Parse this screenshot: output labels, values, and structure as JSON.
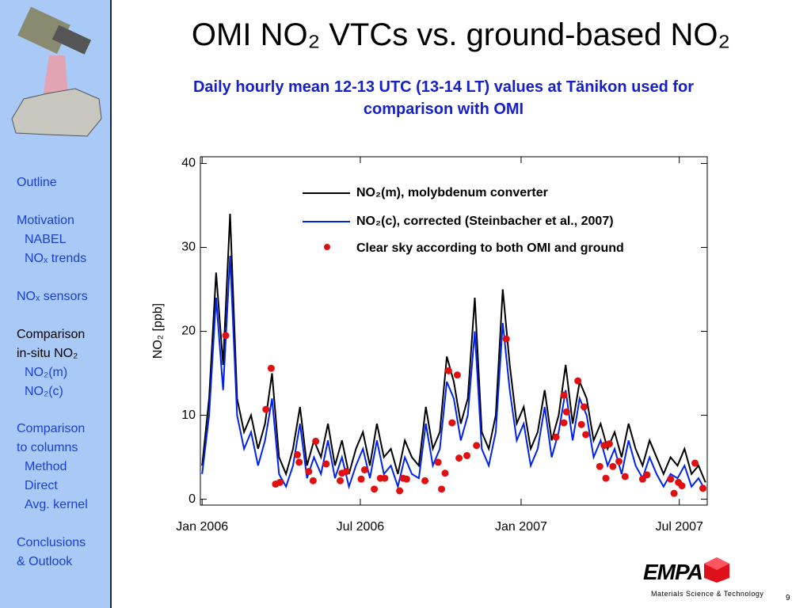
{
  "slide": {
    "title": "OMI NO₂ VTCs vs. ground-based NO₂",
    "subtitle": "Daily hourly mean 12-13 UTC (13-14 LT) values at Tänikon used for comparison with OMI",
    "sidebar": [
      "Outline",
      "Motivation",
      "NABEL",
      "NOₓ trends",
      "NOₓ sensors",
      "Comparison",
      "in-situ NO₂",
      "NO₂(m)",
      "NO₂(c)",
      "Comparison",
      "to columns",
      "Method",
      "Direct",
      "Avg. kernel",
      "Conclusions",
      "& Outlook"
    ],
    "logo": "EMPA",
    "footer": "Materials Science & Technology",
    "page": "9"
  },
  "chart_data": {
    "type": "line",
    "y_label": "NO₂ [ppb]",
    "x": [
      0,
      8,
      16,
      24,
      32,
      40,
      48,
      56,
      64,
      72,
      80,
      88,
      96,
      104,
      112,
      120,
      128,
      136,
      144,
      152,
      160,
      168,
      176,
      184,
      192,
      200,
      208,
      216,
      224,
      232,
      240,
      248,
      256,
      264,
      272,
      280,
      288,
      296,
      304,
      312,
      320,
      328,
      336,
      344,
      352,
      360,
      368,
      376,
      384,
      392,
      400,
      408,
      416,
      424,
      432,
      440,
      448,
      456,
      464,
      472,
      480,
      488,
      496,
      504,
      512,
      520,
      528,
      536,
      544,
      552,
      560,
      568,
      576
    ],
    "xlim": [
      -2,
      578
    ],
    "xticks": [
      {
        "value": 0,
        "label": "Jan 2006"
      },
      {
        "value": 181,
        "label": "Jul 2006"
      },
      {
        "value": 365,
        "label": "Jan 2007"
      },
      {
        "value": 546,
        "label": "Jul 2007"
      }
    ],
    "ylim": [
      -0.7,
      40.8
    ],
    "yticks": [
      0,
      10,
      20,
      30,
      40
    ],
    "grid": false,
    "series": [
      {
        "name": "NO₂(m), molybdenum converter",
        "type": "line",
        "color": "#000000",
        "values": [
          4,
          12,
          27,
          16,
          34,
          12,
          8,
          10,
          6,
          9,
          15,
          5,
          3,
          6,
          11,
          4,
          7,
          5,
          9,
          4,
          7,
          3,
          6,
          8,
          4,
          9,
          5,
          6,
          3,
          7,
          5,
          4,
          11,
          6,
          8,
          17,
          14,
          9,
          12,
          24,
          8,
          6,
          10,
          25,
          16,
          9,
          11,
          6,
          8,
          13,
          7,
          10,
          16,
          9,
          14,
          12,
          7,
          9,
          6,
          8,
          5,
          9,
          6,
          4,
          7,
          5,
          3,
          5,
          4,
          6,
          3,
          4,
          2
        ]
      },
      {
        "name": "NO₂(c), corrected (Steinbacher et al., 2007)",
        "type": "line",
        "color": "#0022ee",
        "values": [
          3,
          10,
          24,
          13,
          29,
          10,
          6,
          8,
          4,
          7,
          12,
          3,
          1.5,
          4,
          9,
          2.5,
          5,
          3,
          7,
          2.5,
          5,
          1.5,
          4,
          6,
          2.5,
          7,
          3,
          4,
          1.5,
          5,
          3,
          2.5,
          9,
          4,
          6,
          14,
          12,
          7,
          10,
          20,
          6,
          4,
          8,
          21,
          13,
          7,
          9,
          4,
          6,
          11,
          5,
          8,
          13,
          7,
          12,
          10,
          5,
          7,
          4,
          6,
          3,
          7,
          4,
          2.5,
          5,
          3,
          1.5,
          3,
          2.5,
          4,
          1.5,
          2.5,
          1
        ]
      },
      {
        "name": "Clear sky according to both OMI and ground",
        "type": "scatter",
        "color": "#e01010",
        "x": [
          27,
          73,
          79,
          84,
          89,
          109,
          111,
          122,
          127,
          130,
          142,
          158,
          160,
          165,
          182,
          186,
          197,
          204,
          209,
          226,
          230,
          234,
          255,
          270,
          274,
          278,
          282,
          286,
          292,
          294,
          303,
          314,
          348,
          405,
          414,
          414,
          417,
          430,
          434,
          437,
          439,
          455,
          460,
          462,
          466,
          470,
          477,
          484,
          504,
          509,
          536,
          540,
          545,
          549,
          564,
          573
        ],
        "values": [
          19.5,
          10.7,
          15.6,
          1.8,
          2.0,
          5.3,
          4.4,
          3.3,
          2.2,
          6.9,
          4.2,
          2.2,
          3.1,
          3.3,
          2.4,
          3.5,
          1.2,
          2.5,
          2.5,
          1.0,
          2.5,
          2.4,
          2.2,
          4.4,
          1.2,
          3.1,
          15.3,
          9.1,
          14.8,
          4.9,
          5.2,
          6.4,
          19.1,
          7.4,
          12.4,
          9.1,
          10.4,
          14.1,
          8.9,
          11.0,
          7.7,
          3.9,
          6.4,
          2.5,
          6.6,
          3.9,
          4.5,
          2.7,
          2.4,
          2.9,
          2.4,
          0.7,
          2.0,
          1.6,
          4.3,
          1.3
        ]
      }
    ]
  }
}
